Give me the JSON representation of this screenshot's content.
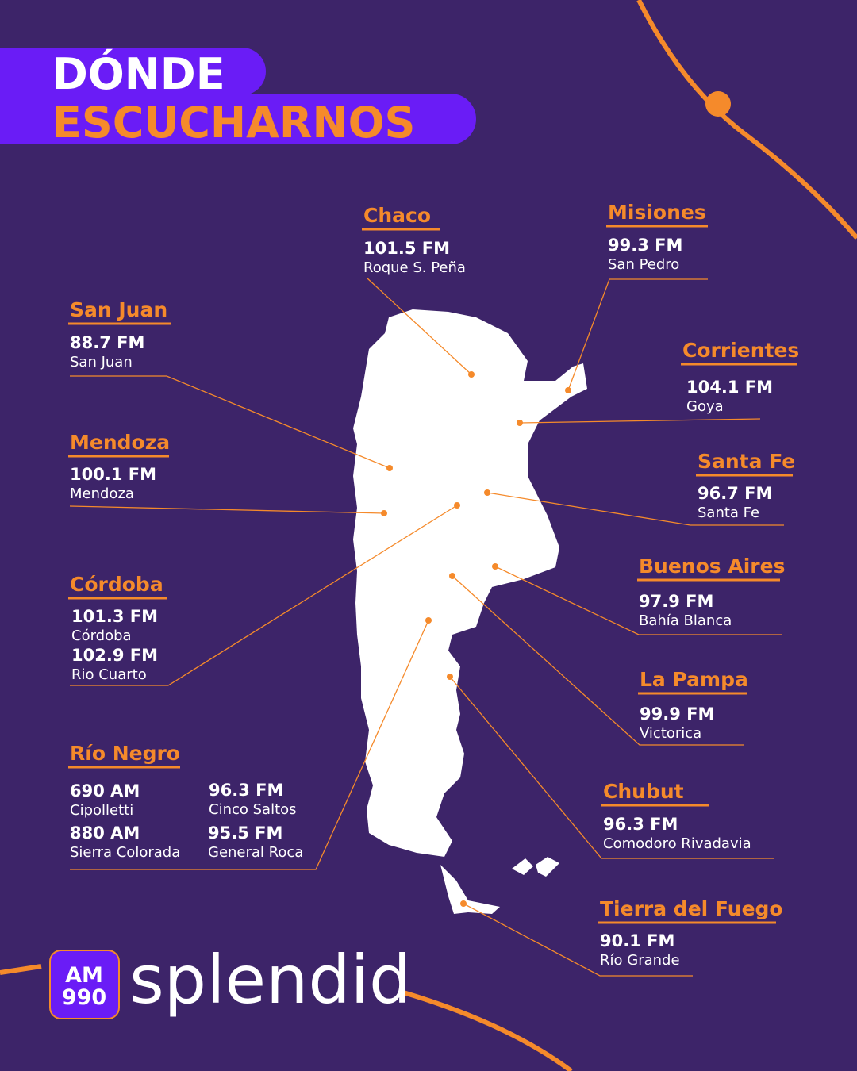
{
  "title": {
    "line1": "DÓNDE",
    "line2": "ESCUCHARNOS"
  },
  "regions": [
    {
      "name": "Chaco",
      "stations": [
        {
          "frequency": "101.5 FM",
          "city": "Roque S. Peña"
        }
      ]
    },
    {
      "name": "Misiones",
      "stations": [
        {
          "frequency": "99.3 FM",
          "city": "San Pedro"
        }
      ]
    },
    {
      "name": "San Juan",
      "stations": [
        {
          "frequency": "88.7 FM",
          "city": "San Juan"
        }
      ]
    },
    {
      "name": "Corrientes",
      "stations": [
        {
          "frequency": "104.1 FM",
          "city": "Goya"
        }
      ]
    },
    {
      "name": "Mendoza",
      "stations": [
        {
          "frequency": "100.1 FM",
          "city": "Mendoza"
        }
      ]
    },
    {
      "name": "Santa Fe",
      "stations": [
        {
          "frequency": "96.7 FM",
          "city": "Santa Fe"
        }
      ]
    },
    {
      "name": "Córdoba",
      "stations": [
        {
          "frequency": "101.3 FM",
          "city": "Córdoba"
        },
        {
          "frequency": "102.9 FM",
          "city": "Rio Cuarto"
        }
      ]
    },
    {
      "name": "Buenos Aires",
      "stations": [
        {
          "frequency": "97.9 FM",
          "city": "Bahía Blanca"
        }
      ]
    },
    {
      "name": "La Pampa",
      "stations": [
        {
          "frequency": "99.9 FM",
          "city": "Victorica"
        }
      ]
    },
    {
      "name": "Río Negro",
      "stations": [
        {
          "frequency": "690 AM",
          "city": "Cipolletti"
        },
        {
          "frequency": "880 AM",
          "city": "Sierra Colorada"
        },
        {
          "frequency": "96.3 FM",
          "city": "Cinco Saltos"
        },
        {
          "frequency": "95.5 FM",
          "city": "General Roca"
        }
      ]
    },
    {
      "name": "Chubut",
      "stations": [
        {
          "frequency": "96.3 FM",
          "city": "Comodoro Rivadavia"
        }
      ]
    },
    {
      "name": "Tierra del Fuego",
      "stations": [
        {
          "frequency": "90.1 FM",
          "city": "Río Grande"
        }
      ]
    }
  ],
  "logo": {
    "badge_line1": "AM",
    "badge_line2": "990",
    "wordmark": "splendid"
  }
}
